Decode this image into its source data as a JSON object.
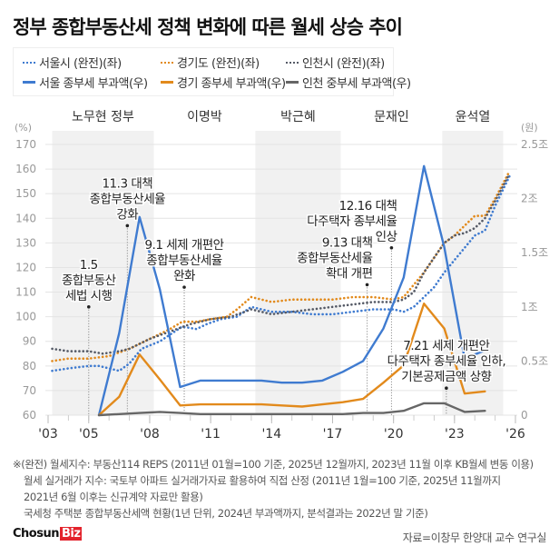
{
  "title": "정부 종합부동산세 정책 변화에 따른 월세 상승 추이",
  "legend": [
    {
      "label": "서울시 (완전)(좌)",
      "color": "#3f7bd0",
      "style": "dotted"
    },
    {
      "label": "경기도 (완전)(좌)",
      "color": "#e28a1c",
      "style": "dotted"
    },
    {
      "label": "인천시 (완전)(좌)",
      "color": "#555a66",
      "style": "dotted"
    },
    {
      "label": "서울 종부세 부과액(우)",
      "color": "#3f7bd0",
      "style": "solid"
    },
    {
      "label": "경기 종부세 부과액(우)",
      "color": "#e28a1c",
      "style": "solid"
    },
    {
      "label": "인천 중부세 부과액(우)",
      "color": "#666666",
      "style": "solid"
    }
  ],
  "chart_data": {
    "type": "line",
    "title": "정부 종합부동산세 정책 변화에 따른 월세 상승 추이",
    "left_axis": {
      "label": "(%)",
      "range": [
        60,
        170
      ],
      "ticks": [
        60,
        70,
        80,
        90,
        100,
        110,
        120,
        130,
        140,
        150,
        160,
        170
      ]
    },
    "right_axis": {
      "label": "(원)",
      "range": [
        0,
        2.5
      ],
      "ticks": [
        "0",
        "0.5조",
        "1조",
        "1.5조",
        "2조",
        "2.5조"
      ]
    },
    "x_axis": {
      "range": [
        2002.5,
        2026
      ],
      "ticks": [
        2003,
        2005,
        2008,
        2011,
        2014,
        2017,
        2020,
        2023,
        2026
      ],
      "tick_labels": [
        "'03",
        "'05",
        "'08",
        "'11",
        "'14",
        "'17",
        "'20",
        "'23",
        "'26"
      ]
    },
    "grid": true,
    "governments": [
      {
        "label": "노무현 정부",
        "from": 2003.2,
        "to": 2008.2,
        "shaded": true
      },
      {
        "label": "이명박",
        "from": 2008.2,
        "to": 2013.2,
        "shaded": false
      },
      {
        "label": "박근혜",
        "from": 2013.2,
        "to": 2017.4,
        "shaded": true
      },
      {
        "label": "문재인",
        "from": 2017.4,
        "to": 2022.4,
        "shaded": false
      },
      {
        "label": "윤석열",
        "from": 2022.4,
        "to": 2025.4,
        "shaded": true
      }
    ],
    "series": [
      {
        "name": "서울시 (완전)(좌)",
        "axis": "left",
        "style": "dotted",
        "color": "#3f7bd0",
        "x": [
          2003.2,
          2004,
          2005,
          2005.5,
          2006.5,
          2007,
          2007.6,
          2008.5,
          2009.6,
          2010.3,
          2010.8,
          2011.5,
          2012.3,
          2013,
          2014,
          2015,
          2016,
          2017,
          2018,
          2019,
          2020,
          2020.5,
          2021,
          2021.5,
          2022,
          2022.5,
          2023,
          2023.5,
          2024,
          2024.5,
          2025,
          2025.7
        ],
        "values": [
          78,
          79,
          80,
          80,
          78,
          81,
          87,
          90,
          96,
          95,
          97,
          99,
          100,
          104,
          102,
          102,
          101,
          101,
          102,
          103,
          103,
          102,
          104,
          108,
          112,
          118,
          123,
          128,
          133,
          135,
          145,
          157
        ]
      },
      {
        "name": "경기도 (완전)(좌)",
        "axis": "left",
        "style": "dotted",
        "color": "#e28a1c",
        "x": [
          2003.2,
          2004,
          2005,
          2006,
          2007,
          2008,
          2009,
          2009.6,
          2010.3,
          2011,
          2011.8,
          2012.3,
          2013,
          2014,
          2015,
          2016,
          2017,
          2018,
          2019,
          2020,
          2020.5,
          2021,
          2021.5,
          2022,
          2022.5,
          2023,
          2023.5,
          2024,
          2024.5,
          2025,
          2025.7
        ],
        "values": [
          82,
          83,
          83,
          84,
          87,
          91,
          95,
          98,
          98,
          99,
          100,
          103,
          108,
          106,
          107,
          107,
          107,
          108,
          108,
          107,
          108,
          113,
          118,
          124,
          130,
          133,
          137,
          141,
          141,
          148,
          159
        ]
      },
      {
        "name": "인천시 (완전)(좌)",
        "axis": "left",
        "style": "dotted",
        "color": "#555a66",
        "x": [
          2003.2,
          2004,
          2005,
          2005.7,
          2006.5,
          2007,
          2008,
          2009,
          2010,
          2011,
          2012,
          2013,
          2014,
          2015,
          2016,
          2017,
          2018,
          2019,
          2020,
          2020.5,
          2021,
          2021.5,
          2022,
          2022.5,
          2023,
          2023.5,
          2024,
          2024.5,
          2025,
          2025.7
        ],
        "values": [
          87,
          86,
          86,
          85,
          86,
          87,
          91,
          94,
          97,
          99,
          100,
          103,
          101,
          102,
          103,
          104,
          105,
          106,
          106,
          107,
          110,
          118,
          124,
          130,
          133,
          134,
          136,
          140,
          147,
          158
        ]
      },
      {
        "name": "서울 종부세 부과액(우)",
        "axis": "right",
        "style": "solid",
        "color": "#3f7bd0",
        "x": [
          2005.5,
          2006.5,
          2007.5,
          2008.5,
          2009.5,
          2010.5,
          2011.5,
          2012.5,
          2013.5,
          2014.5,
          2015.5,
          2016.5,
          2017.5,
          2018.5,
          2019.5,
          2020.5,
          2021.5,
          2022.5,
          2023.5,
          2024.5
        ],
        "values": [
          0.0,
          0.76,
          1.83,
          1.16,
          0.26,
          0.32,
          0.32,
          0.32,
          0.32,
          0.3,
          0.3,
          0.32,
          0.4,
          0.5,
          0.8,
          1.27,
          2.3,
          1.55,
          0.52,
          0.6
        ]
      },
      {
        "name": "경기 종부세 부과액(우)",
        "axis": "right",
        "style": "solid",
        "color": "#e28a1c",
        "x": [
          2005.5,
          2006.5,
          2007.5,
          2008.5,
          2009.5,
          2010.5,
          2011.5,
          2012.5,
          2013.5,
          2014.5,
          2015.5,
          2016.5,
          2017.5,
          2018.5,
          2019.5,
          2020.5,
          2021.5,
          2022.5,
          2023.5,
          2024.5
        ],
        "values": [
          0.0,
          0.17,
          0.56,
          0.33,
          0.09,
          0.1,
          0.1,
          0.1,
          0.1,
          0.09,
          0.08,
          0.1,
          0.12,
          0.15,
          0.3,
          0.46,
          1.03,
          0.8,
          0.2,
          0.22
        ]
      },
      {
        "name": "인천 중부세 부과액(우)",
        "axis": "right",
        "style": "solid",
        "color": "#666666",
        "x": [
          2005.5,
          2006.5,
          2007.5,
          2008.5,
          2009.5,
          2010.5,
          2011.5,
          2012.5,
          2013.5,
          2014.5,
          2015.5,
          2016.5,
          2017.5,
          2018.5,
          2019.5,
          2020.5,
          2021.5,
          2022.5,
          2023.5,
          2024.5
        ],
        "values": [
          0.0,
          0.01,
          0.02,
          0.03,
          0.02,
          0.01,
          0.01,
          0.01,
          0.01,
          0.01,
          0.01,
          0.01,
          0.01,
          0.02,
          0.02,
          0.04,
          0.11,
          0.11,
          0.03,
          0.04
        ]
      }
    ],
    "annotations": [
      {
        "lines": [
          "1.5",
          "종합부동산",
          "세법 시행"
        ],
        "x": 2005.0,
        "y": 104
      },
      {
        "lines": [
          "11.3 대책",
          "종합부동산세율",
          "강화"
        ],
        "x": 2006.9,
        "y": 137
      },
      {
        "lines": [
          "9.1 세제 개편안",
          "종합부동산세율",
          "완화"
        ],
        "x": 2009.7,
        "y": 112
      },
      {
        "lines": [
          "9.13 대책",
          "종합부동산세율",
          "확대 개편"
        ],
        "x": 2018.7,
        "y": 113
      },
      {
        "lines": [
          "12.16 대책",
          "다주택자 종부세율",
          "인상"
        ],
        "x": 2019.9,
        "y": 128
      },
      {
        "lines": [
          "7.21 세제 개편안",
          "다주택자 종부세율 인하,",
          "기본공제금액 상향"
        ],
        "x": 2022.6,
        "y": 71
      }
    ]
  },
  "footnotes": [
    "※(완전) 월세지수: 부동산114 REPS (2011년 01월=100 기준, 2025년 12월까지, 2023년 11월 이후 KB월세 변동 이용)",
    "월세 실거래가 지수: 국토부 아파트 실거래가자료 활용하여 직접 산정 (2011년 1월=100 기준, 2025년 11월까지",
    "2021년 6월 이후는 신규계약 자료만 활용)",
    "국세청 주택분 종합부동산세액 현황(1년 단위, 2024년 부과액까지, 분석결과는 2022년 말 기준)"
  ],
  "logo": {
    "text": "Chosun",
    "badge": "Biz"
  },
  "source": "자료=이창무 한양대 교수 연구실"
}
